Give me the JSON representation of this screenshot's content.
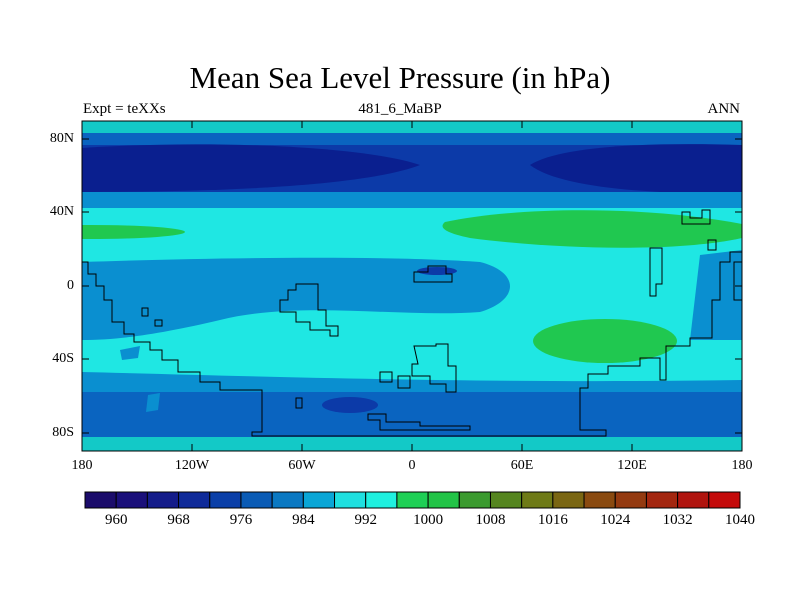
{
  "title": "Mean Sea Level Pressure (in hPa)",
  "subtitle_left": "Expt = teXXs",
  "subtitle_center": "481_6_MaBP",
  "subtitle_right": "ANN",
  "y_ticks": [
    "80N",
    "40N",
    "0",
    "40S",
    "80S"
  ],
  "x_ticks": [
    "180",
    "120W",
    "60W",
    "0",
    "60E",
    "120E",
    "180"
  ],
  "colorbar": {
    "labels": [
      "960",
      "968",
      "976",
      "984",
      "992",
      "1000",
      "1008",
      "1016",
      "1024",
      "1032",
      "1040"
    ],
    "colors": [
      "#1b0c6b",
      "#1a0f7a",
      "#141c8a",
      "#0f2a99",
      "#0a3fa8",
      "#0a5bb5",
      "#0a78c2",
      "#0aa6d6",
      "#1fe0e0",
      "#1ff0df",
      "#1fcf55",
      "#22c447",
      "#3b9a2f",
      "#55851f",
      "#6e7a17",
      "#7a6612",
      "#8a4a10",
      "#943a10",
      "#a3260f",
      "#b0140e",
      "#c40a0a"
    ]
  },
  "colors": {
    "deep": "#0a1f8f",
    "darkblue": "#0c3aa8",
    "blue": "#0a64c0",
    "lightblue": "#0a8fd0",
    "cyan": "#1fe7e3",
    "green": "#20c850",
    "aqua_top": "#13c9c7"
  }
}
